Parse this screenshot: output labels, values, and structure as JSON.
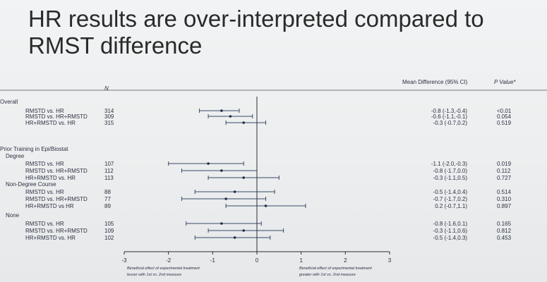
{
  "slide": {
    "title_line1": "HR results are over-interpreted compared to",
    "title_line2": "RMST difference"
  },
  "table": {
    "n_header": "N",
    "md_header": "Mean Difference (95% CI)",
    "p_header": "P Value*"
  },
  "chart_data": {
    "type": "forest",
    "xlim": [
      -3,
      3
    ],
    "xticks": [
      "-3",
      "-2",
      "-1",
      "0",
      "1",
      "2",
      "3"
    ],
    "reference_line": 0,
    "left_caption": [
      "Beneficial effect of experimental treatment",
      "lesser with 1st vs. 2nd measure"
    ],
    "right_caption": [
      "Beneficial effect of experimental treatment",
      "greater with 1st vs. 2nd measure"
    ],
    "groups": [
      {
        "text": "Overall"
      },
      {
        "text": "Prior Training in Epi/Biostat"
      },
      {
        "text": "Degree"
      },
      {
        "text": "Non-Degree Course"
      },
      {
        "text": "None"
      }
    ],
    "rows": [
      {
        "label": "RMSTD vs. HR",
        "n": "314",
        "mean": -0.8,
        "lo": -1.3,
        "hi": -0.4,
        "ci_text": "-0.8 (-1.3,-0.4)",
        "p": "<0.01"
      },
      {
        "label": "RMSTD vs. HR+RMSTD",
        "n": "309",
        "mean": -0.6,
        "lo": -1.1,
        "hi": -0.1,
        "ci_text": "-0.6 (-1.1,-0.1)",
        "p": "0.054"
      },
      {
        "label": "HR+RMSTD vs. HR",
        "n": "315",
        "mean": -0.3,
        "lo": -0.7,
        "hi": 0.2,
        "ci_text": "-0.3 (-0.7,0.2)",
        "p": "0.519"
      },
      {
        "label": "RMSTD vs. HR",
        "n": "107",
        "mean": -1.1,
        "lo": -2.0,
        "hi": -0.3,
        "ci_text": "-1.1 (-2.0,-0.3)",
        "p": "0.019"
      },
      {
        "label": "RMSTD vs. HR+RMSTD",
        "n": "112",
        "mean": -0.8,
        "lo": -1.7,
        "hi": 0.0,
        "ci_text": "-0.8 (-1.7,0.0)",
        "p": "0.112"
      },
      {
        "label": "HR+RMSTD vs. HR",
        "n": "113",
        "mean": -0.3,
        "lo": -1.1,
        "hi": 0.5,
        "ci_text": "-0.3 (-1.1,0.5)",
        "p": "0.727"
      },
      {
        "label": "RMSTD vs. HR",
        "n": "88",
        "mean": -0.5,
        "lo": -1.4,
        "hi": 0.4,
        "ci_text": "-0.5 (-1.4,0.4)",
        "p": "0.514"
      },
      {
        "label": "RMSTD vs. HR+RMSTD",
        "n": "77",
        "mean": -0.7,
        "lo": -1.7,
        "hi": 0.2,
        "ci_text": "-0.7 (-1.7,0.2)",
        "p": "0.310"
      },
      {
        "label": "HR+RMSTD vs HR",
        "n": "89",
        "mean": 0.2,
        "lo": -0.7,
        "hi": 1.1,
        "ci_text": "0.2 (-0.7,1.1)",
        "p": "0.897"
      },
      {
        "label": "RMSTD vs. HR",
        "n": "105",
        "mean": -0.8,
        "lo": -1.6,
        "hi": 0.1,
        "ci_text": "-0.8 (-1.6,0.1)",
        "p": "0.165"
      },
      {
        "label": "RMSTD vs. HR+RMSTD",
        "n": "109",
        "mean": -0.3,
        "lo": -1.1,
        "hi": 0.6,
        "ci_text": "-0.3 (-1.1,0.6)",
        "p": "0.812"
      },
      {
        "label": "HR+RMSTD vs. HR",
        "n": "102",
        "mean": -0.5,
        "lo": -1.4,
        "hi": 0.3,
        "ci_text": "-0.5 (-1.4,0.3)",
        "p": "0.453"
      }
    ]
  }
}
